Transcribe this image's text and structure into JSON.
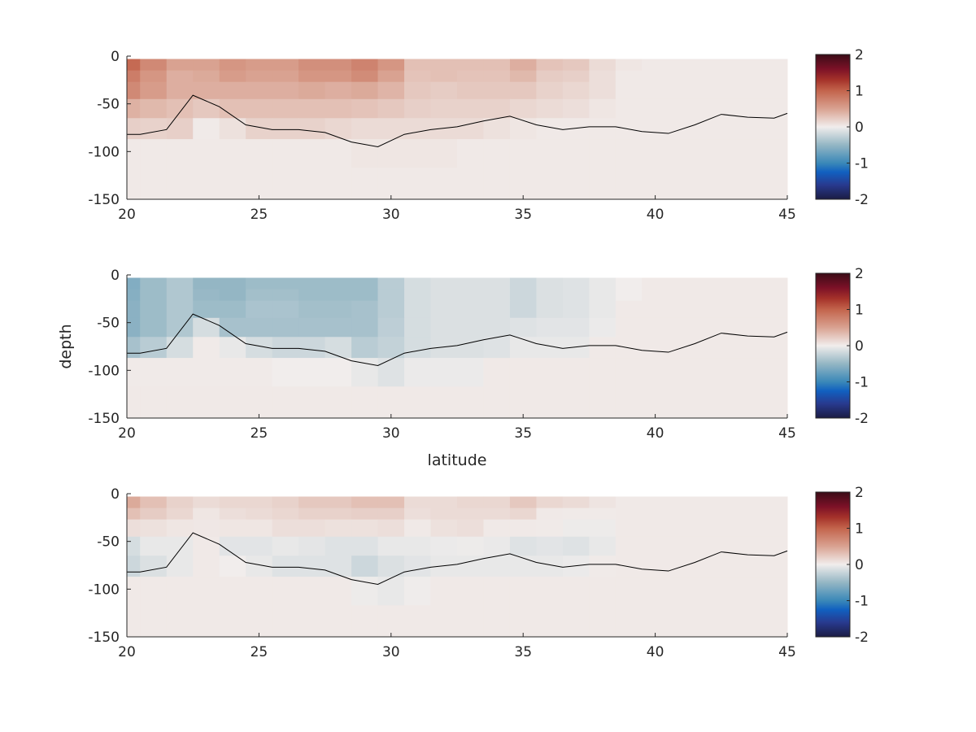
{
  "chart_data": [
    {
      "type": "heatmap",
      "xlabel": "",
      "ylabel": "",
      "xlim": [
        20,
        45
      ],
      "ylim": [
        -150,
        0
      ],
      "clim": [
        -2,
        2
      ],
      "xticks": [
        20,
        25,
        30,
        35,
        40,
        45
      ],
      "yticks": [
        0,
        -50,
        -100,
        -150
      ],
      "colorbar_ticks": [
        2,
        1,
        0,
        -1,
        -2
      ],
      "latitudes": [
        20,
        21,
        22,
        23,
        24,
        25,
        26,
        27,
        28,
        29,
        30,
        31,
        32,
        33,
        34,
        35,
        36,
        37,
        38,
        39,
        40,
        41,
        42,
        43,
        44,
        45
      ],
      "depth_edges": [
        -3,
        -15,
        -27,
        -45,
        -65,
        -87,
        -117,
        -150
      ],
      "values": [
        [
          0.95,
          0.7,
          0.5,
          0.5,
          0.6,
          0.55,
          0.55,
          0.65,
          0.65,
          0.75,
          0.6,
          0.3,
          0.3,
          0.3,
          0.3,
          0.42,
          0.28,
          0.25,
          0.12,
          0.05,
          0.03,
          0.03,
          0.03,
          0.03,
          0.03,
          0.03
        ],
        [
          0.8,
          0.6,
          0.42,
          0.45,
          0.55,
          0.5,
          0.5,
          0.6,
          0.6,
          0.68,
          0.5,
          0.28,
          0.3,
          0.28,
          0.28,
          0.35,
          0.22,
          0.2,
          0.1,
          0.03,
          0.03,
          0.03,
          0.03,
          0.03,
          0.03,
          0.03
        ],
        [
          0.7,
          0.55,
          0.42,
          0.42,
          0.42,
          0.42,
          0.42,
          0.45,
          0.42,
          0.45,
          0.38,
          0.25,
          0.22,
          0.25,
          0.25,
          0.25,
          0.18,
          0.15,
          0.1,
          0.03,
          0.03,
          0.03,
          0.03,
          0.03,
          0.03,
          0.03
        ],
        [
          0.4,
          0.35,
          0.3,
          0.25,
          0.3,
          0.3,
          0.3,
          0.3,
          0.3,
          0.28,
          0.25,
          0.2,
          0.18,
          0.18,
          0.18,
          0.15,
          0.12,
          0.1,
          0.05,
          0.03,
          0.03,
          0.03,
          0.03,
          0.03,
          0.03,
          0.03
        ],
        [
          0.2,
          0.18,
          0.2,
          0.02,
          0.08,
          0.18,
          0.18,
          0.18,
          0.15,
          0.12,
          0.12,
          0.12,
          0.12,
          0.12,
          0.08,
          0.05,
          0.03,
          0.03,
          0.03,
          0.03,
          0.03,
          0.03,
          0.03,
          0.03,
          0.03,
          0.03
        ],
        [
          0.03,
          0.03,
          0.03,
          0.03,
          0.03,
          0.03,
          0.03,
          0.03,
          0.03,
          0.05,
          0.05,
          0.05,
          0.05,
          0.03,
          0.03,
          0.03,
          0.03,
          0.03,
          0.03,
          0.03,
          0.03,
          0.03,
          0.03,
          0.03,
          0.03,
          0.03
        ],
        [
          0.03,
          0.03,
          0.03,
          0.03,
          0.03,
          0.03,
          0.03,
          0.03,
          0.03,
          0.03,
          0.03,
          0.03,
          0.03,
          0.03,
          0.03,
          0.03,
          0.03,
          0.03,
          0.03,
          0.03,
          0.03,
          0.03,
          0.03,
          0.03,
          0.03,
          0.03
        ]
      ],
      "line": {
        "lat": [
          20,
          20.5,
          21.5,
          22.5,
          23.5,
          24.5,
          25.5,
          26.5,
          27.5,
          28.5,
          29.5,
          30.5,
          31.5,
          32.5,
          33.5,
          34.5,
          35.5,
          36.5,
          37.5,
          38.5,
          39.5,
          40.5,
          41.5,
          42.5,
          43.5,
          44.5,
          45
        ],
        "depth": [
          -82,
          -82,
          -77,
          -41,
          -53,
          -72,
          -77,
          -77,
          -80,
          -90,
          -95,
          -82,
          -77,
          -74,
          -68,
          -63,
          -72,
          -77,
          -74,
          -74,
          -79,
          -81,
          -72,
          -61,
          -64,
          -65,
          -60
        ]
      }
    },
    {
      "type": "heatmap",
      "xlabel": "latitude",
      "ylabel": "depth",
      "xlim": [
        20,
        45
      ],
      "ylim": [
        -150,
        0
      ],
      "clim": [
        -2,
        2
      ],
      "xticks": [
        20,
        25,
        30,
        35,
        40,
        45
      ],
      "yticks": [
        0,
        -50,
        -100,
        -150
      ],
      "colorbar_ticks": [
        2,
        1,
        0,
        -1,
        -2
      ],
      "latitudes": [
        20,
        21,
        22,
        23,
        24,
        25,
        26,
        27,
        28,
        29,
        30,
        31,
        32,
        33,
        34,
        35,
        36,
        37,
        38,
        39,
        40,
        41,
        42,
        43,
        44,
        45
      ],
      "depth_edges": [
        -3,
        -15,
        -27,
        -45,
        -65,
        -87,
        -117,
        -150
      ],
      "values": [
        [
          -0.6,
          -0.45,
          -0.35,
          -0.5,
          -0.5,
          -0.45,
          -0.45,
          -0.45,
          -0.45,
          -0.45,
          -0.3,
          -0.15,
          -0.12,
          -0.12,
          -0.12,
          -0.2,
          -0.12,
          -0.1,
          -0.05,
          0,
          0.03,
          0.03,
          0.03,
          0.03,
          0.03,
          0.03
        ],
        [
          -0.58,
          -0.45,
          -0.35,
          -0.48,
          -0.5,
          -0.42,
          -0.42,
          -0.45,
          -0.45,
          -0.45,
          -0.3,
          -0.15,
          -0.12,
          -0.12,
          -0.12,
          -0.2,
          -0.12,
          -0.1,
          -0.05,
          0,
          0.03,
          0.03,
          0.03,
          0.03,
          0.03,
          0.03
        ],
        [
          -0.55,
          -0.45,
          -0.35,
          -0.45,
          -0.45,
          -0.38,
          -0.38,
          -0.42,
          -0.42,
          -0.4,
          -0.3,
          -0.15,
          -0.12,
          -0.12,
          -0.12,
          -0.2,
          -0.12,
          -0.1,
          -0.05,
          0.03,
          0.03,
          0.03,
          0.03,
          0.03,
          0.03,
          0.03
        ],
        [
          -0.55,
          -0.45,
          -0.35,
          -0.15,
          -0.4,
          -0.4,
          -0.4,
          -0.4,
          -0.4,
          -0.4,
          -0.28,
          -0.15,
          -0.12,
          -0.12,
          -0.12,
          -0.1,
          -0.08,
          -0.08,
          -0.03,
          0.03,
          0.03,
          0.03,
          0.03,
          0.03,
          0.03,
          0.03
        ],
        [
          -0.4,
          -0.3,
          -0.15,
          0.02,
          -0.05,
          -0.15,
          -0.2,
          -0.2,
          -0.15,
          -0.3,
          -0.25,
          -0.15,
          -0.12,
          -0.12,
          -0.1,
          -0.05,
          -0.05,
          -0.05,
          0.03,
          0.03,
          0.03,
          0.03,
          0.03,
          0.03,
          0.03,
          0.03
        ],
        [
          0.02,
          0.02,
          0.02,
          0.02,
          0.02,
          0.02,
          0,
          0,
          0,
          -0.05,
          -0.1,
          -0.03,
          -0.03,
          -0.03,
          0.03,
          0.03,
          0.03,
          0.03,
          0.03,
          0.03,
          0.03,
          0.03,
          0.03,
          0.03,
          0.03,
          0.03
        ],
        [
          0.03,
          0.03,
          0.03,
          0.03,
          0.03,
          0.03,
          0.03,
          0.03,
          0.03,
          0.03,
          0.03,
          0.03,
          0.03,
          0.03,
          0.03,
          0.03,
          0.03,
          0.03,
          0.03,
          0.03,
          0.03,
          0.03,
          0.03,
          0.03,
          0.03,
          0.03
        ]
      ],
      "line": {
        "lat": [
          20,
          20.5,
          21.5,
          22.5,
          23.5,
          24.5,
          25.5,
          26.5,
          27.5,
          28.5,
          29.5,
          30.5,
          31.5,
          32.5,
          33.5,
          34.5,
          35.5,
          36.5,
          37.5,
          38.5,
          39.5,
          40.5,
          41.5,
          42.5,
          43.5,
          44.5,
          45
        ],
        "depth": [
          -82,
          -82,
          -77,
          -41,
          -53,
          -72,
          -77,
          -77,
          -80,
          -90,
          -95,
          -82,
          -77,
          -74,
          -68,
          -63,
          -72,
          -77,
          -74,
          -74,
          -79,
          -81,
          -72,
          -61,
          -64,
          -65,
          -60
        ]
      }
    },
    {
      "type": "heatmap",
      "xlabel": "",
      "ylabel": "",
      "xlim": [
        20,
        45
      ],
      "ylim": [
        -150,
        0
      ],
      "clim": [
        -2,
        2
      ],
      "xticks": [
        20,
        25,
        30,
        35,
        40,
        45
      ],
      "yticks": [
        0,
        -50,
        -100,
        -150
      ],
      "colorbar_ticks": [
        2,
        1,
        0,
        -1,
        -2
      ],
      "latitudes": [
        20,
        21,
        22,
        23,
        24,
        25,
        26,
        27,
        28,
        29,
        30,
        31,
        32,
        33,
        34,
        35,
        36,
        37,
        38,
        39,
        40,
        41,
        42,
        43,
        44,
        45
      ],
      "depth_edges": [
        -3,
        -15,
        -27,
        -45,
        -65,
        -87,
        -117,
        -150
      ],
      "values": [
        [
          0.45,
          0.3,
          0.18,
          0.12,
          0.15,
          0.15,
          0.18,
          0.25,
          0.25,
          0.3,
          0.3,
          0.12,
          0.12,
          0.15,
          0.15,
          0.25,
          0.15,
          0.12,
          0.06,
          0.03,
          0.03,
          0.03,
          0.03,
          0.03,
          0.03,
          0.03
        ],
        [
          0.3,
          0.22,
          0.15,
          0.05,
          0.1,
          0.12,
          0.15,
          0.18,
          0.18,
          0.2,
          0.2,
          0.1,
          0.12,
          0.12,
          0.12,
          0.15,
          0.03,
          0.02,
          0.02,
          0.03,
          0.03,
          0.03,
          0.03,
          0.03,
          0.03,
          0.03
        ],
        [
          0.1,
          0.08,
          0.05,
          0.04,
          0.05,
          0.05,
          0.1,
          0.1,
          0.08,
          0.08,
          0.1,
          0.03,
          0.08,
          0.1,
          0.03,
          0.03,
          0.02,
          -0.02,
          -0.02,
          0.03,
          0.03,
          0.03,
          0.03,
          0.03,
          0.03,
          0.03
        ],
        [
          -0.15,
          -0.05,
          -0.05,
          0.03,
          -0.08,
          -0.08,
          -0.05,
          -0.07,
          -0.1,
          -0.1,
          -0.05,
          -0.05,
          -0.03,
          -0.02,
          -0.04,
          -0.1,
          -0.08,
          -0.1,
          -0.05,
          0.03,
          0.03,
          0.03,
          0.03,
          0.03,
          0.03,
          0.03
        ],
        [
          -0.2,
          -0.12,
          -0.05,
          0.03,
          0,
          -0.05,
          -0.1,
          -0.1,
          -0.1,
          -0.2,
          -0.12,
          -0.08,
          -0.05,
          -0.05,
          -0.05,
          -0.05,
          -0.05,
          -0.03,
          0.02,
          0.03,
          0.03,
          0.03,
          0.03,
          0.03,
          0.03,
          0.03
        ],
        [
          0.03,
          0.03,
          0.03,
          0.03,
          0.03,
          0.03,
          0.03,
          0.03,
          0.03,
          -0.02,
          -0.05,
          -0.01,
          0.03,
          0.03,
          0.03,
          0.03,
          0.03,
          0.03,
          0.03,
          0.03,
          0.03,
          0.03,
          0.03,
          0.03,
          0.03,
          0.03
        ],
        [
          0.03,
          0.03,
          0.03,
          0.03,
          0.03,
          0.03,
          0.03,
          0.03,
          0.03,
          0.03,
          0.03,
          0.03,
          0.03,
          0.03,
          0.03,
          0.03,
          0.03,
          0.03,
          0.03,
          0.03,
          0.03,
          0.03,
          0.03,
          0.03,
          0.03,
          0.03
        ]
      ],
      "line": {
        "lat": [
          20,
          20.5,
          21.5,
          22.5,
          23.5,
          24.5,
          25.5,
          26.5,
          27.5,
          28.5,
          29.5,
          30.5,
          31.5,
          32.5,
          33.5,
          34.5,
          35.5,
          36.5,
          37.5,
          38.5,
          39.5,
          40.5,
          41.5,
          42.5,
          43.5,
          44.5,
          45
        ],
        "depth": [
          -82,
          -82,
          -77,
          -41,
          -53,
          -72,
          -77,
          -77,
          -80,
          -90,
          -95,
          -82,
          -77,
          -74,
          -68,
          -63,
          -72,
          -77,
          -74,
          -74,
          -79,
          -81,
          -72,
          -61,
          -64,
          -65,
          -60
        ]
      }
    }
  ]
}
